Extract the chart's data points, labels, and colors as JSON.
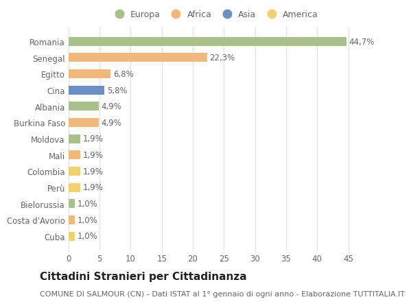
{
  "countries": [
    "Romania",
    "Senegal",
    "Egitto",
    "Cina",
    "Albania",
    "Burkina Faso",
    "Moldova",
    "Mali",
    "Colombia",
    "Perù",
    "Bielorussia",
    "Costa d'Avorio",
    "Cuba"
  ],
  "values": [
    44.7,
    22.3,
    6.8,
    5.8,
    4.9,
    4.9,
    1.9,
    1.9,
    1.9,
    1.9,
    1.0,
    1.0,
    1.0
  ],
  "labels": [
    "44,7%",
    "22,3%",
    "6,8%",
    "5,8%",
    "4,9%",
    "4,9%",
    "1,9%",
    "1,9%",
    "1,9%",
    "1,9%",
    "1,0%",
    "1,0%",
    "1,0%"
  ],
  "continents": [
    "Europa",
    "Africa",
    "Africa",
    "Asia",
    "Europa",
    "Africa",
    "Europa",
    "Africa",
    "America",
    "America",
    "Europa",
    "Africa",
    "America"
  ],
  "continent_colors": {
    "Europa": "#a8c08a",
    "Africa": "#f0b97a",
    "Asia": "#6b8fc4",
    "America": "#f0d070"
  },
  "legend_order": [
    "Europa",
    "Africa",
    "Asia",
    "America"
  ],
  "legend_colors": [
    "#a8c08a",
    "#f0b97a",
    "#6b8fc4",
    "#f0d070"
  ],
  "title": "Cittadini Stranieri per Cittadinanza",
  "subtitle": "COMUNE DI SALMOUR (CN) - Dati ISTAT al 1° gennaio di ogni anno - Elaborazione TUTTITALIA.IT",
  "xlim": [
    0,
    47
  ],
  "xticks": [
    0,
    5,
    10,
    15,
    20,
    25,
    30,
    35,
    40,
    45
  ],
  "background_color": "#ffffff",
  "grid_color": "#e0e0e0",
  "bar_height": 0.55,
  "label_fontsize": 8.5,
  "tick_fontsize": 8.5,
  "title_fontsize": 11,
  "subtitle_fontsize": 8
}
